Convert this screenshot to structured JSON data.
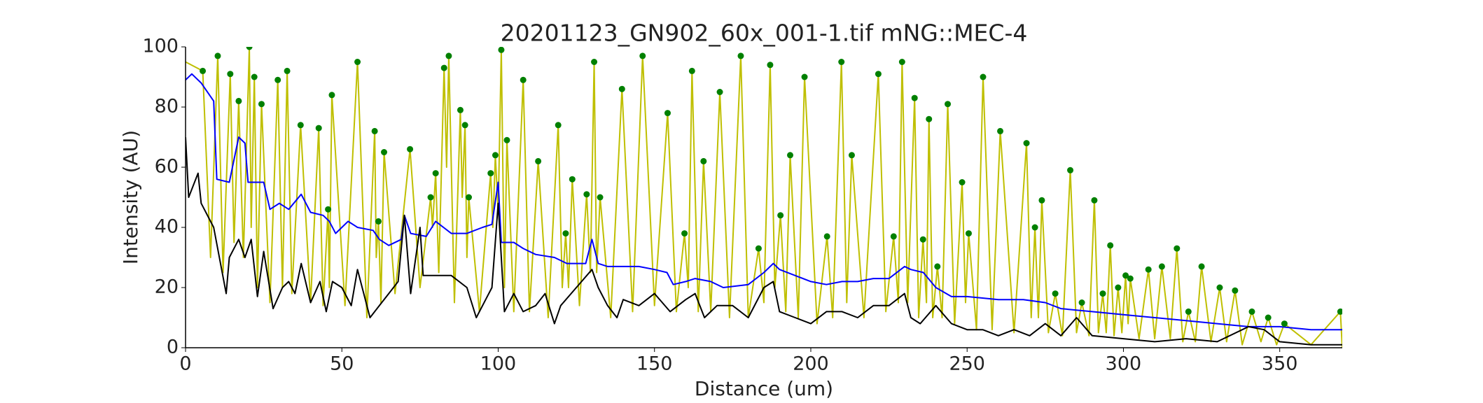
{
  "chart_data": {
    "type": "line",
    "title": "20201123_GN902_60x_001-1.tif mNG::MEC-4",
    "x_label": "Distance (um)",
    "y_label": "Intensity (AU)",
    "xlim": [
      0,
      370
    ],
    "ylim": [
      0,
      100
    ],
    "xticks": [
      0,
      50,
      100,
      150,
      200,
      250,
      300,
      350
    ],
    "yticks": [
      0,
      20,
      40,
      60,
      80,
      100
    ],
    "grid": false,
    "series": [
      {
        "kind": "line",
        "color": "#bfbf00",
        "x": [
          0,
          5.5,
          8,
          10.3,
          12,
          14.3,
          15.5,
          17,
          18.5,
          20.4,
          21,
          22,
          23,
          24.3,
          27,
          29.5,
          31,
          32.5,
          34,
          36.8,
          40,
          42.6,
          44,
          45.6,
          46,
          46.8,
          51,
          55,
          58,
          60.5,
          61,
          61.7,
          62.5,
          63.5,
          67,
          71.8,
          75,
          78.4,
          79,
          80,
          81,
          82.7,
          83.5,
          84.2,
          86,
          87.9,
          88.5,
          89.4,
          90,
          90.6,
          94,
          97.6,
          98.3,
          99.1,
          100,
          101,
          102,
          102.8,
          105,
          108,
          110,
          112.8,
          116,
          119.2,
          120.5,
          121.6,
          122.5,
          123.7,
          126,
          128.3,
          129.5,
          130.7,
          131.5,
          132.6,
          136,
          139.6,
          143,
          146.2,
          150,
          154.2,
          157,
          159.6,
          160.8,
          162,
          164,
          165.7,
          168,
          170.9,
          174,
          177.6,
          180,
          183.3,
          185,
          187,
          188.5,
          190.3,
          192,
          193.4,
          196,
          198,
          202,
          205.2,
          207,
          209.8,
          211.5,
          213.1,
          217,
          221.6,
          224,
          226.5,
          228,
          229.2,
          231,
          233.2,
          234.5,
          235.9,
          237,
          237.8,
          239,
          240.5,
          242,
          243.8,
          246,
          248.4,
          249.5,
          250.5,
          253,
          255.1,
          258,
          260.6,
          265,
          269,
          270.5,
          271.7,
          272.8,
          273.9,
          276,
          278.2,
          280.5,
          283,
          285,
          286.7,
          289,
          290.7,
          292,
          293.4,
          294.5,
          295.8,
          297,
          298.3,
          299.5,
          300.7,
          301.5,
          302.2,
          305,
          308,
          310,
          312.3,
          315,
          317.1,
          319,
          320.8,
          323,
          325,
          328,
          330.8,
          333,
          335.7,
          338,
          341.1,
          344,
          346.3,
          349,
          351.5,
          360,
          369.4,
          370
        ],
        "values": [
          95,
          92,
          30,
          97,
          25,
          91,
          35,
          82,
          30,
          100,
          40,
          90,
          20,
          81,
          15,
          89,
          20,
          92,
          18,
          74,
          15,
          73,
          14,
          46,
          20,
          84,
          14,
          95,
          10,
          72,
          30,
          42,
          15,
          65,
          18,
          66,
          20,
          50,
          40,
          58,
          25,
          93,
          60,
          97,
          15,
          79,
          50,
          74,
          30,
          50,
          12,
          58,
          40,
          64,
          45,
          99,
          20,
          69,
          12,
          89,
          12,
          62,
          10,
          74,
          20,
          38,
          20,
          56,
          14,
          51,
          25,
          95,
          25,
          50,
          10,
          86,
          12,
          97,
          14,
          78,
          12,
          38,
          20,
          92,
          12,
          62,
          12,
          85,
          10,
          97,
          10,
          33,
          15,
          94,
          20,
          44,
          12,
          64,
          10,
          90,
          8,
          37,
          10,
          95,
          15,
          64,
          10,
          91,
          12,
          37,
          15,
          95,
          15,
          83,
          10,
          36,
          15,
          76,
          10,
          27,
          10,
          81,
          8,
          55,
          15,
          38,
          6,
          90,
          6,
          72,
          5,
          68,
          10,
          40,
          10,
          49,
          5,
          18,
          4,
          59,
          5,
          15,
          4,
          49,
          5,
          18,
          5,
          34,
          4,
          20,
          5,
          24,
          8,
          23,
          3,
          26,
          3,
          27,
          3,
          33,
          2,
          12,
          2,
          27,
          2,
          20,
          2,
          19,
          1,
          12,
          2,
          10,
          1,
          8,
          1,
          12,
          0
        ]
      },
      {
        "kind": "line",
        "color": "#0000ff",
        "x": [
          0,
          2,
          5,
          9,
          10,
          14,
          17,
          19,
          20,
          25,
          27,
          30,
          33,
          37,
          40,
          44,
          46,
          48,
          52,
          55,
          60,
          62,
          65,
          69,
          70,
          72,
          77,
          80,
          85,
          90,
          95,
          98,
          100,
          101,
          105,
          108,
          112,
          118,
          122,
          128,
          130,
          132,
          135,
          140,
          145,
          150,
          154,
          156,
          160,
          163,
          168,
          172,
          180,
          185,
          188,
          190,
          195,
          200,
          205,
          210,
          215,
          220,
          225,
          230,
          232,
          236,
          240,
          245,
          250,
          260,
          268,
          275,
          280,
          290,
          300,
          310,
          320,
          330,
          340,
          350,
          360,
          370
        ],
        "values": [
          89,
          91,
          88,
          82,
          56,
          55,
          70,
          68,
          55,
          55,
          46,
          48,
          46,
          51,
          45,
          44,
          42,
          38,
          42,
          40,
          39,
          36,
          34,
          36,
          44,
          38,
          37,
          42,
          38,
          38,
          40,
          41,
          55,
          35,
          35,
          33,
          31,
          30,
          28,
          28,
          36,
          28,
          27,
          27,
          27,
          26,
          25,
          21,
          22,
          23,
          22,
          20,
          21,
          25,
          28,
          26,
          24,
          22,
          21,
          22,
          22,
          23,
          23,
          27,
          26,
          25,
          20,
          17,
          17,
          16,
          16,
          15,
          13,
          12,
          11,
          10,
          9,
          8,
          7,
          7,
          6,
          6
        ]
      },
      {
        "kind": "line",
        "color": "#000000",
        "x": [
          0,
          1,
          4,
          5,
          9,
          13,
          14,
          17,
          19,
          21,
          23,
          25,
          28,
          31,
          33,
          35,
          37,
          40,
          43,
          45,
          47,
          50,
          53,
          55,
          57,
          59,
          62,
          65,
          68,
          70,
          72,
          75,
          76,
          80,
          85,
          90,
          93,
          96,
          98,
          100,
          102,
          105,
          108,
          112,
          115,
          118,
          120,
          125,
          130,
          132,
          135,
          138,
          140,
          145,
          150,
          155,
          160,
          163,
          166,
          170,
          175,
          180,
          185,
          188,
          190,
          195,
          200,
          205,
          210,
          215,
          220,
          225,
          230,
          232,
          235,
          240,
          245,
          250,
          255,
          260,
          265,
          270,
          275,
          280,
          285,
          290,
          300,
          310,
          320,
          330,
          340,
          345,
          350,
          360,
          370
        ],
        "values": [
          70,
          50,
          58,
          48,
          40,
          18,
          30,
          36,
          30,
          36,
          17,
          32,
          13,
          20,
          22,
          18,
          28,
          15,
          22,
          12,
          22,
          20,
          14,
          26,
          18,
          10,
          14,
          18,
          22,
          44,
          18,
          40,
          24,
          24,
          24,
          20,
          10,
          16,
          20,
          48,
          12,
          18,
          12,
          14,
          18,
          8,
          14,
          20,
          26,
          20,
          14,
          10,
          16,
          14,
          18,
          12,
          16,
          18,
          10,
          14,
          14,
          10,
          20,
          22,
          12,
          10,
          8,
          12,
          12,
          10,
          14,
          14,
          18,
          10,
          8,
          14,
          8,
          6,
          6,
          4,
          6,
          4,
          8,
          4,
          10,
          4,
          3,
          2,
          3,
          2,
          7,
          6,
          2,
          1,
          1
        ]
      },
      {
        "kind": "scatter",
        "color": "#008000",
        "x": [
          5.5,
          10.3,
          14.3,
          17,
          20.4,
          22,
          24.3,
          29.5,
          32.5,
          36.8,
          42.6,
          45.6,
          46.8,
          55,
          60.5,
          61.7,
          63.5,
          71.8,
          78.4,
          80,
          82.7,
          84.2,
          87.9,
          89.4,
          90.6,
          97.6,
          99.1,
          101,
          102.8,
          108,
          112.8,
          119.2,
          121.6,
          123.7,
          128.3,
          130.7,
          132.6,
          139.6,
          146.2,
          154.2,
          159.6,
          162,
          165.7,
          170.9,
          177.6,
          183.3,
          187,
          190.3,
          193.4,
          198,
          205.2,
          209.8,
          213.1,
          221.6,
          226.5,
          229.2,
          233.2,
          235.9,
          237.8,
          240.5,
          243.8,
          248.4,
          250.5,
          255.1,
          260.6,
          269,
          271.7,
          273.9,
          278.2,
          283,
          286.7,
          290.7,
          293.4,
          295.8,
          298.3,
          300.7,
          302.2,
          308,
          312.3,
          317.1,
          320.8,
          325,
          330.8,
          335.7,
          341.1,
          346.3,
          351.5,
          369.4
        ],
        "values": [
          92,
          97,
          91,
          82,
          100,
          90,
          81,
          89,
          92,
          74,
          73,
          46,
          84,
          95,
          72,
          42,
          65,
          66,
          50,
          58,
          93,
          97,
          79,
          74,
          50,
          58,
          64,
          99,
          69,
          89,
          62,
          74,
          38,
          56,
          51,
          95,
          50,
          86,
          97,
          78,
          38,
          92,
          62,
          85,
          97,
          33,
          94,
          44,
          64,
          90,
          37,
          95,
          64,
          91,
          37,
          95,
          83,
          36,
          76,
          27,
          81,
          55,
          38,
          90,
          72,
          68,
          40,
          49,
          18,
          59,
          15,
          49,
          18,
          34,
          20,
          24,
          23,
          26,
          27,
          33,
          12,
          27,
          20,
          19,
          12,
          10,
          8,
          12
        ]
      }
    ]
  }
}
